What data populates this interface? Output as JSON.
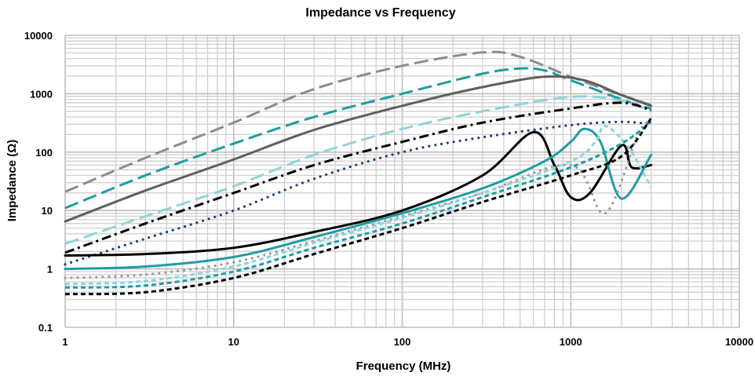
{
  "chart_data": {
    "type": "line",
    "title": "Impedance vs Frequency",
    "xlabel": "Frequency (MHz)",
    "ylabel": "Impedance (Ω)",
    "x_scale": "log",
    "y_scale": "log",
    "xlim": [
      1,
      10000
    ],
    "ylim": [
      0.1,
      10000
    ],
    "x_ticks": [
      1,
      10,
      100,
      1000,
      10000
    ],
    "x_tick_labels": [
      "1",
      "10",
      "100",
      "1000",
      "10000"
    ],
    "y_ticks": [
      0.1,
      1,
      10,
      100,
      1000,
      10000
    ],
    "y_tick_labels": [
      "0.1",
      "1",
      "10",
      "100",
      "1000",
      "10000"
    ],
    "grid": true,
    "legend": "none",
    "series": [
      {
        "color": "#8c8c8c",
        "dash": "long-dash",
        "points": [
          [
            1,
            21
          ],
          [
            3,
            80
          ],
          [
            10,
            320
          ],
          [
            30,
            1200
          ],
          [
            100,
            3000
          ],
          [
            300,
            5100
          ],
          [
            500,
            4300
          ],
          [
            1000,
            1950
          ],
          [
            2000,
            950
          ],
          [
            3000,
            640
          ]
        ]
      },
      {
        "color": "#1e9ca4",
        "dash": "long-dash",
        "points": [
          [
            1,
            11
          ],
          [
            3,
            40
          ],
          [
            10,
            140
          ],
          [
            30,
            400
          ],
          [
            100,
            1000
          ],
          [
            300,
            2200
          ],
          [
            500,
            2700
          ],
          [
            700,
            2500
          ],
          [
            1000,
            1700
          ],
          [
            2000,
            800
          ],
          [
            3000,
            550
          ]
        ]
      },
      {
        "color": "#5f5f5f",
        "dash": "solid",
        "points": [
          [
            1,
            6.5
          ],
          [
            3,
            22
          ],
          [
            10,
            75
          ],
          [
            30,
            240
          ],
          [
            100,
            620
          ],
          [
            300,
            1300
          ],
          [
            700,
            1950
          ],
          [
            1200,
            1700
          ],
          [
            2000,
            950
          ],
          [
            3000,
            620
          ]
        ]
      },
      {
        "color": "#8fd4da",
        "dash": "long-dash",
        "points": [
          [
            1,
            2.7
          ],
          [
            3,
            8
          ],
          [
            10,
            26
          ],
          [
            30,
            90
          ],
          [
            100,
            250
          ],
          [
            300,
            500
          ],
          [
            1000,
            880
          ],
          [
            2000,
            760
          ],
          [
            3000,
            500
          ]
        ]
      },
      {
        "color": "#000000",
        "dash": "dash-dot",
        "points": [
          [
            1,
            1.9
          ],
          [
            3,
            6
          ],
          [
            10,
            20
          ],
          [
            30,
            60
          ],
          [
            100,
            150
          ],
          [
            300,
            320
          ],
          [
            1000,
            560
          ],
          [
            2000,
            700
          ],
          [
            3000,
            520
          ]
        ]
      },
      {
        "color": "#1f3f7a",
        "dash": "dot",
        "points": [
          [
            1,
            1.2
          ],
          [
            3,
            3.3
          ],
          [
            10,
            10
          ],
          [
            30,
            35
          ],
          [
            100,
            100
          ],
          [
            300,
            180
          ],
          [
            1000,
            290
          ],
          [
            2000,
            330
          ],
          [
            3000,
            300
          ]
        ]
      },
      {
        "color": "#000000",
        "dash": "solid",
        "points": [
          [
            1,
            1.7
          ],
          [
            3,
            1.8
          ],
          [
            10,
            2.3
          ],
          [
            30,
            4.3
          ],
          [
            100,
            10
          ],
          [
            300,
            40
          ],
          [
            600,
            220
          ],
          [
            800,
            60
          ],
          [
            1000,
            17
          ],
          [
            1300,
            20
          ],
          [
            2000,
            130
          ],
          [
            2300,
            55
          ],
          [
            3000,
            60
          ]
        ]
      },
      {
        "color": "#1e9ca4",
        "dash": "solid",
        "points": [
          [
            1,
            1.0
          ],
          [
            3,
            1.1
          ],
          [
            10,
            1.6
          ],
          [
            30,
            3.5
          ],
          [
            100,
            9
          ],
          [
            300,
            24
          ],
          [
            700,
            70
          ],
          [
            1000,
            150
          ],
          [
            1200,
            250
          ],
          [
            1500,
            150
          ],
          [
            2000,
            16
          ],
          [
            3000,
            90
          ]
        ]
      },
      {
        "color": "#9a9a9a",
        "dash": "dot",
        "points": [
          [
            1,
            0.7
          ],
          [
            3,
            0.8
          ],
          [
            10,
            1.3
          ],
          [
            30,
            3
          ],
          [
            100,
            8
          ],
          [
            300,
            20
          ],
          [
            1000,
            60
          ],
          [
            1600,
            9
          ],
          [
            2500,
            200
          ],
          [
            3000,
            350
          ]
        ]
      },
      {
        "color": "#8fd4da",
        "dash": "short-dash",
        "points": [
          [
            1,
            0.55
          ],
          [
            3,
            0.62
          ],
          [
            10,
            1.1
          ],
          [
            30,
            2.8
          ],
          [
            100,
            7.5
          ],
          [
            300,
            20
          ],
          [
            1000,
            70
          ],
          [
            1400,
            150
          ],
          [
            1600,
            280
          ],
          [
            2200,
            120
          ],
          [
            3000,
            25
          ]
        ]
      },
      {
        "color": "#1e9ca4",
        "dash": "short-dash",
        "points": [
          [
            1,
            0.48
          ],
          [
            3,
            0.52
          ],
          [
            10,
            0.9
          ],
          [
            30,
            2.3
          ],
          [
            100,
            6
          ],
          [
            300,
            17
          ],
          [
            1000,
            55
          ],
          [
            2000,
            140
          ],
          [
            3000,
            330
          ]
        ]
      },
      {
        "color": "#000000",
        "dash": "short-dash",
        "points": [
          [
            1,
            0.37
          ],
          [
            3,
            0.4
          ],
          [
            10,
            0.7
          ],
          [
            30,
            1.8
          ],
          [
            100,
            5
          ],
          [
            300,
            14
          ],
          [
            1000,
            40
          ],
          [
            2000,
            85
          ],
          [
            3000,
            380
          ]
        ]
      }
    ]
  }
}
